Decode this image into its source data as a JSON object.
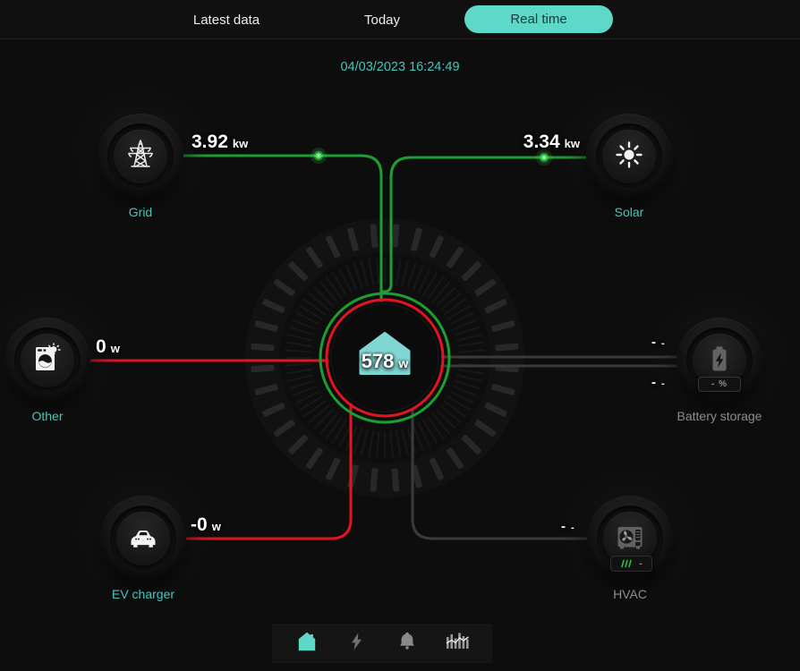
{
  "header": {
    "tabs": [
      {
        "label": "Latest data",
        "active": false
      },
      {
        "label": "Today",
        "active": false
      },
      {
        "label": "Real time",
        "active": true
      }
    ]
  },
  "timestamp": "04/03/2023 16:24:49",
  "center": {
    "value": "578",
    "unit": "w"
  },
  "nodes": {
    "grid": {
      "label": "Grid",
      "value": "3.92",
      "unit": "kw"
    },
    "solar": {
      "label": "Solar",
      "value": "3.34",
      "unit": "kw"
    },
    "other": {
      "label": "Other",
      "value": "0",
      "unit": "w"
    },
    "ev_charger": {
      "label": "EV charger",
      "value": "-0",
      "unit": "w"
    },
    "battery": {
      "label": "Battery storage",
      "value_top": "-",
      "unit_top": "-",
      "value_bottom": "-",
      "unit_bottom": "-",
      "badge": "- %"
    },
    "hvac": {
      "label": "HVAC",
      "value": "-",
      "unit": "-",
      "badge_dash": "-"
    }
  },
  "nav": {
    "items": [
      {
        "icon": "home-icon",
        "active": true
      },
      {
        "icon": "bolt-icon",
        "active": false
      },
      {
        "icon": "bell-icon",
        "active": false
      },
      {
        "icon": "stats-icon",
        "active": false
      }
    ]
  },
  "colors": {
    "accent": "#5ed8c9",
    "label_teal": "#49c5bb",
    "flow_green": "#1d9e33",
    "flow_red": "#e01522",
    "idle_line": "#3a3a3a",
    "house_teal": "#7fd6d2"
  }
}
